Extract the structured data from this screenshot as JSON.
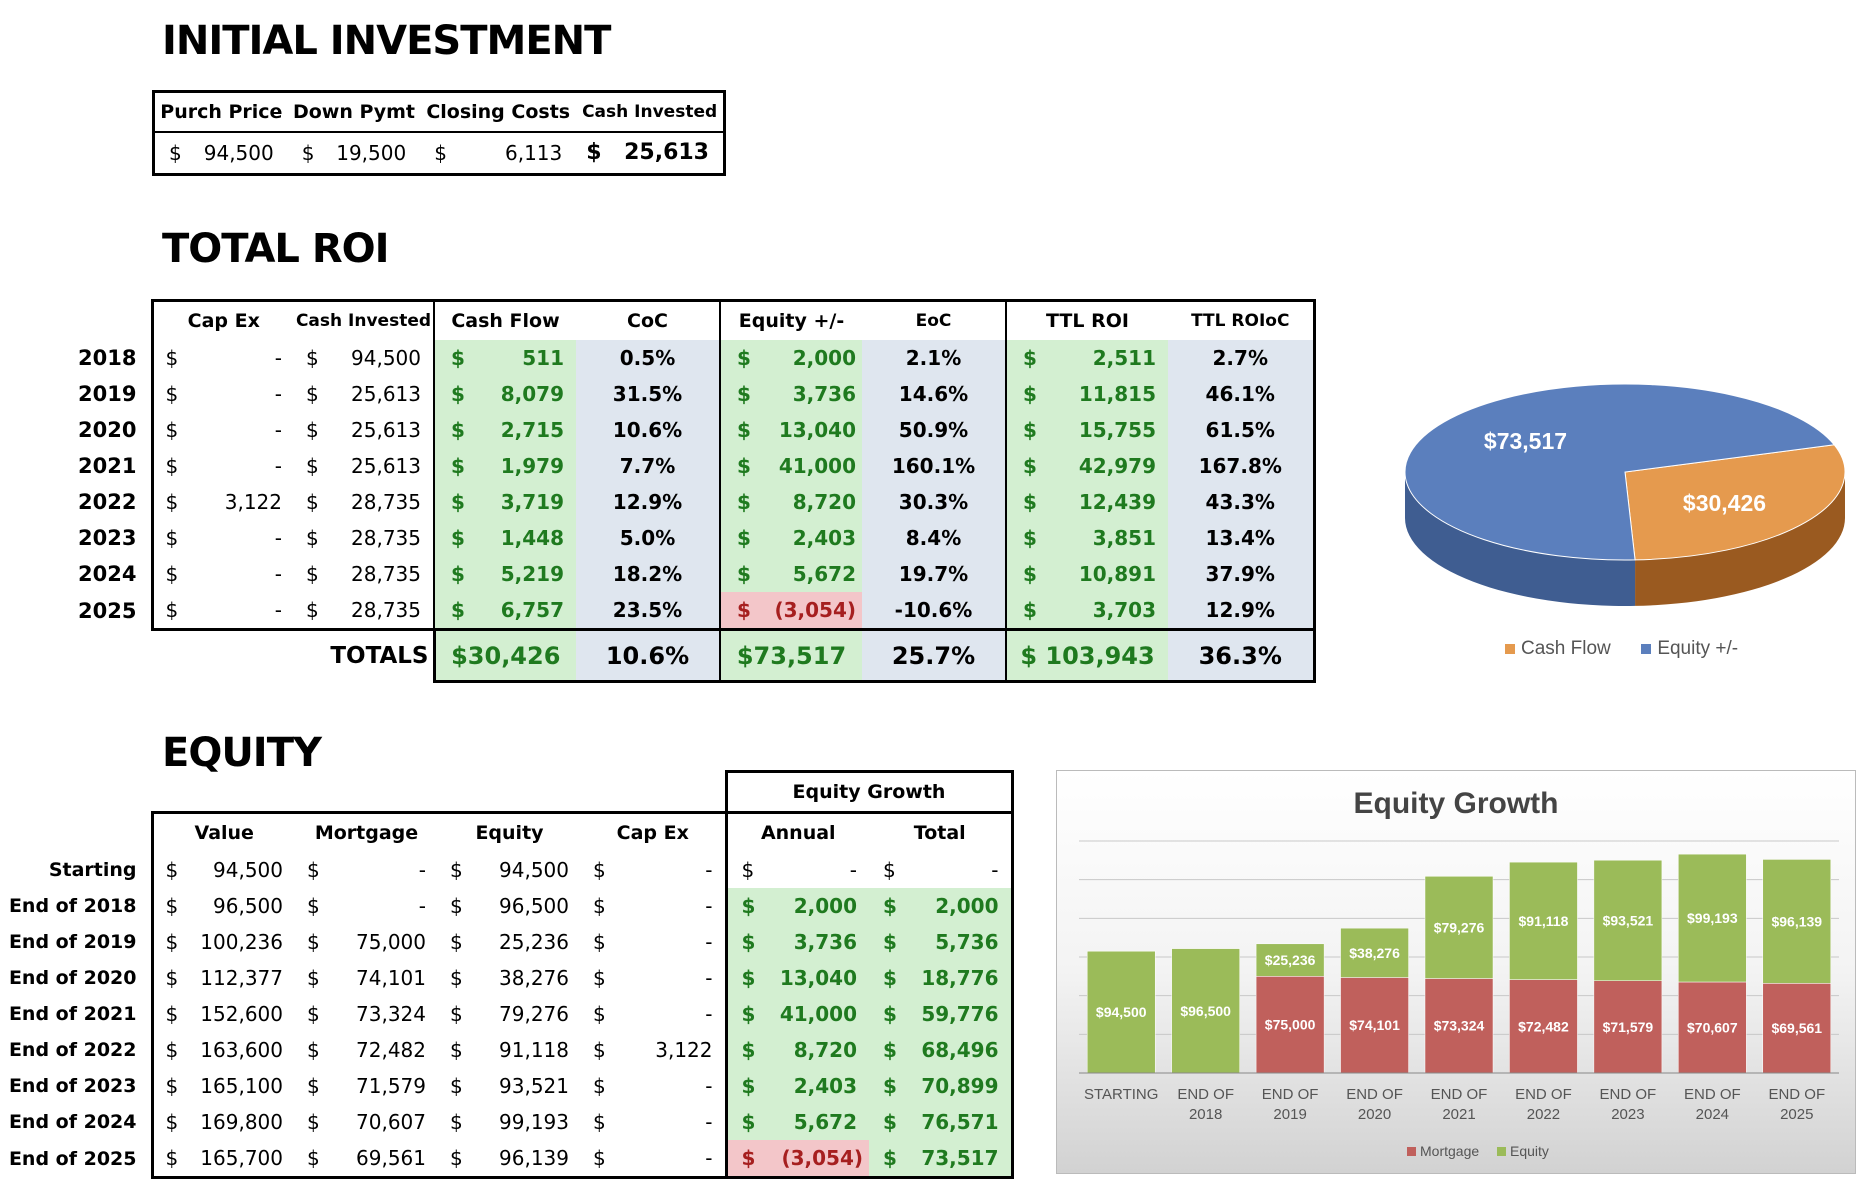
{
  "initial": {
    "title": "INITIAL INVESTMENT",
    "headers": [
      "Purch Price",
      "Down Pymt",
      "Closing Costs",
      "Cash Invested"
    ],
    "values": [
      "94,500",
      "19,500",
      "6,113",
      "25,613"
    ]
  },
  "roi": {
    "title": "TOTAL ROI",
    "headers": [
      "Cap Ex",
      "Cash Invested",
      "Cash Flow",
      "CoC",
      "Equity +/-",
      "EoC",
      "TTL ROI",
      "TTL ROIoC"
    ],
    "rows": [
      {
        "year": "2018",
        "capex": "-",
        "invested": "94,500",
        "cf": "511",
        "coc": "0.5%",
        "eq": "2,000",
        "eoc": "2.1%",
        "ttl": "2,511",
        "ttloc": "2.7%"
      },
      {
        "year": "2019",
        "capex": "-",
        "invested": "25,613",
        "cf": "8,079",
        "coc": "31.5%",
        "eq": "3,736",
        "eoc": "14.6%",
        "ttl": "11,815",
        "ttloc": "46.1%"
      },
      {
        "year": "2020",
        "capex": "-",
        "invested": "25,613",
        "cf": "2,715",
        "coc": "10.6%",
        "eq": "13,040",
        "eoc": "50.9%",
        "ttl": "15,755",
        "ttloc": "61.5%"
      },
      {
        "year": "2021",
        "capex": "-",
        "invested": "25,613",
        "cf": "1,979",
        "coc": "7.7%",
        "eq": "41,000",
        "eoc": "160.1%",
        "ttl": "42,979",
        "ttloc": "167.8%"
      },
      {
        "year": "2022",
        "capex": "3,122",
        "invested": "28,735",
        "cf": "3,719",
        "coc": "12.9%",
        "eq": "8,720",
        "eoc": "30.3%",
        "ttl": "12,439",
        "ttloc": "43.3%"
      },
      {
        "year": "2023",
        "capex": "-",
        "invested": "28,735",
        "cf": "1,448",
        "coc": "5.0%",
        "eq": "2,403",
        "eoc": "8.4%",
        "ttl": "3,851",
        "ttloc": "13.4%"
      },
      {
        "year": "2024",
        "capex": "-",
        "invested": "28,735",
        "cf": "5,219",
        "coc": "18.2%",
        "eq": "5,672",
        "eoc": "19.7%",
        "ttl": "10,891",
        "ttloc": "37.9%"
      },
      {
        "year": "2025",
        "capex": "-",
        "invested": "28,735",
        "cf": "6,757",
        "coc": "23.5%",
        "eq": "(3,054)",
        "eoc": "-10.6%",
        "ttl": "3,703",
        "ttloc": "12.9%"
      }
    ],
    "totals": {
      "label": "TOTALS",
      "cf": "$30,426",
      "coc": "10.6%",
      "eq": "$73,517",
      "eoc": "25.7%",
      "ttl": "$ 103,943",
      "ttloc": "36.3%"
    }
  },
  "equity": {
    "title": "EQUITY",
    "group_header": "Equity Growth",
    "headers": [
      "Value",
      "Mortgage",
      "Equity",
      "Cap Ex",
      "Annual",
      "Total"
    ],
    "rows": [
      {
        "label": "Starting",
        "value": "94,500",
        "mortgage": "-",
        "equity": "94,500",
        "capex": "-",
        "annual": "-",
        "total": "-"
      },
      {
        "label": "End of 2018",
        "value": "96,500",
        "mortgage": "-",
        "equity": "96,500",
        "capex": "-",
        "annual": "2,000",
        "total": "2,000"
      },
      {
        "label": "End of 2019",
        "value": "100,236",
        "mortgage": "75,000",
        "equity": "25,236",
        "capex": "-",
        "annual": "3,736",
        "total": "5,736"
      },
      {
        "label": "End of 2020",
        "value": "112,377",
        "mortgage": "74,101",
        "equity": "38,276",
        "capex": "-",
        "annual": "13,040",
        "total": "18,776"
      },
      {
        "label": "End of 2021",
        "value": "152,600",
        "mortgage": "73,324",
        "equity": "79,276",
        "capex": "-",
        "annual": "41,000",
        "total": "59,776"
      },
      {
        "label": "End of 2022",
        "value": "163,600",
        "mortgage": "72,482",
        "equity": "91,118",
        "capex": "3,122",
        "annual": "8,720",
        "total": "68,496"
      },
      {
        "label": "End of 2023",
        "value": "165,100",
        "mortgage": "71,579",
        "equity": "93,521",
        "capex": "-",
        "annual": "2,403",
        "total": "70,899"
      },
      {
        "label": "End of 2024",
        "value": "169,800",
        "mortgage": "70,607",
        "equity": "99,193",
        "capex": "-",
        "annual": "5,672",
        "total": "76,571"
      },
      {
        "label": "End of 2025",
        "value": "165,700",
        "mortgage": "69,561",
        "equity": "96,139",
        "capex": "-",
        "annual": "(3,054)",
        "total": "73,517"
      }
    ]
  },
  "chart_data": [
    {
      "type": "pie",
      "title": "",
      "categories": [
        "Cash Flow",
        "Equity +/-"
      ],
      "values": [
        30426,
        73517
      ],
      "labels": [
        "$30,426",
        "$73,517"
      ],
      "colors": [
        "#e59a4e",
        "#5b7fbd"
      ],
      "legend": "bottom"
    },
    {
      "type": "bar",
      "stacked": true,
      "title": "Equity Growth",
      "categories": [
        [
          "STARTING"
        ],
        [
          "END OF",
          "2018"
        ],
        [
          "END OF",
          "2019"
        ],
        [
          "END OF",
          "2020"
        ],
        [
          "END OF",
          "2021"
        ],
        [
          "END OF",
          "2022"
        ],
        [
          "END OF",
          "2023"
        ],
        [
          "END OF",
          "2024"
        ],
        [
          "END OF",
          "2025"
        ]
      ],
      "series": [
        {
          "name": "Mortgage",
          "color": "#c0605c",
          "values": [
            0,
            0,
            75000,
            74101,
            73324,
            72482,
            71579,
            70607,
            69561
          ],
          "labels": [
            "$-",
            "$-",
            "$75,000",
            "$74,101",
            "$73,324",
            "$72,482",
            "$71,579",
            "$70,607",
            "$69,561"
          ]
        },
        {
          "name": "Equity",
          "color": "#9bbb59",
          "values": [
            94500,
            96500,
            25236,
            38276,
            79276,
            91118,
            93521,
            99193,
            96139
          ],
          "labels": [
            "$94,500",
            "$96,500",
            "$25,236",
            "$38,276",
            "$79,276",
            "$91,118",
            "$93,521",
            "$99,193",
            "$96,139"
          ]
        }
      ],
      "ylim": [
        0,
        180000
      ],
      "legend": "bottom"
    }
  ]
}
